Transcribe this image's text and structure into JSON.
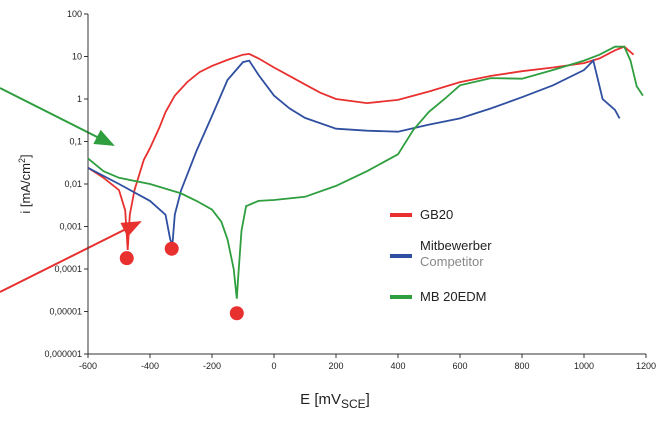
{
  "chart_data": {
    "type": "line",
    "log_y": true,
    "xlabel": [
      "E [mV",
      "SCE",
      "]"
    ],
    "ylabel": [
      "i [mA/cm",
      "2",
      "]"
    ],
    "xlim": [
      -600,
      1200
    ],
    "xticks": [
      -600,
      -400,
      -200,
      0,
      200,
      400,
      600,
      800,
      1000,
      1200
    ],
    "ylim": [
      1e-06,
      100
    ],
    "yticks": [
      {
        "value": 1e-06,
        "label": "0,000001"
      },
      {
        "value": 1e-05,
        "label": "0,00001"
      },
      {
        "value": 0.0001,
        "label": "0,0001"
      },
      {
        "value": 0.001,
        "label": "0,001"
      },
      {
        "value": 0.01,
        "label": "0,01"
      },
      {
        "value": 0.1,
        "label": "0,1"
      },
      1,
      10,
      100
    ],
    "series": [
      {
        "name": "GB20",
        "color": "#e8312f",
        "x": [
          -600,
          -550,
          -500,
          -480,
          -472,
          -465,
          -450,
          -420,
          -400,
          -370,
          -350,
          -320,
          -280,
          -240,
          -200,
          -150,
          -100,
          -80,
          -50,
          0,
          50,
          100,
          150,
          200,
          300,
          400,
          500,
          600,
          700,
          800,
          900,
          1000,
          1050,
          1100,
          1130,
          1160
        ],
        "values": [
          0.024,
          0.014,
          0.0072,
          0.0024,
          0.00028,
          0.0019,
          0.0072,
          0.037,
          0.07,
          0.21,
          0.49,
          1.2,
          2.5,
          4.3,
          6,
          8.3,
          11,
          11.5,
          9,
          5.5,
          3.5,
          2.2,
          1.4,
          1.0,
          0.8,
          0.95,
          1.5,
          2.5,
          3.5,
          4.5,
          5.5,
          7,
          9,
          14,
          17,
          11
        ],
        "ecorr": {
          "x": -475,
          "y": 0.00018
        }
      },
      {
        "name": "Mitbewerber",
        "name_sub": "Competitor",
        "color": "#2f4fa0",
        "x": [
          -600,
          -500,
          -400,
          -350,
          -335,
          -328,
          -320,
          -300,
          -250,
          -200,
          -150,
          -100,
          -80,
          -50,
          0,
          50,
          100,
          200,
          300,
          400,
          500,
          600,
          700,
          800,
          900,
          1000,
          1030,
          1045,
          1060,
          1100,
          1115
        ],
        "values": [
          0.024,
          0.01,
          0.004,
          0.0019,
          0.0005,
          0.00035,
          0.0019,
          0.007,
          0.06,
          0.4,
          2.8,
          7.4,
          8,
          3.7,
          1.2,
          0.6,
          0.36,
          0.2,
          0.18,
          0.17,
          0.25,
          0.35,
          0.6,
          1.1,
          2.1,
          4.8,
          8,
          2.8,
          1.0,
          0.55,
          0.35
        ],
        "ecorr": {
          "x": -330,
          "y": 0.0003
        }
      },
      {
        "name": "MB 20EDM",
        "color": "#2e9e3e",
        "x": [
          -600,
          -550,
          -500,
          -400,
          -300,
          -250,
          -200,
          -170,
          -150,
          -130,
          -120,
          -115,
          -105,
          -90,
          -50,
          0,
          100,
          200,
          300,
          400,
          450,
          500,
          550,
          600,
          700,
          800,
          900,
          1000,
          1050,
          1100,
          1130,
          1150,
          1170,
          1190
        ],
        "values": [
          0.04,
          0.02,
          0.014,
          0.01,
          0.006,
          0.004,
          0.0025,
          0.0013,
          0.0005,
          0.0001,
          2e-05,
          7e-05,
          0.0008,
          0.003,
          0.004,
          0.0042,
          0.005,
          0.009,
          0.02,
          0.05,
          0.19,
          0.5,
          1.0,
          2.1,
          3.1,
          3,
          4.8,
          8,
          11,
          17,
          17,
          8,
          2,
          1.2
        ],
        "ecorr": {
          "x": -120,
          "y": 9.1e-06
        }
      }
    ]
  }
}
